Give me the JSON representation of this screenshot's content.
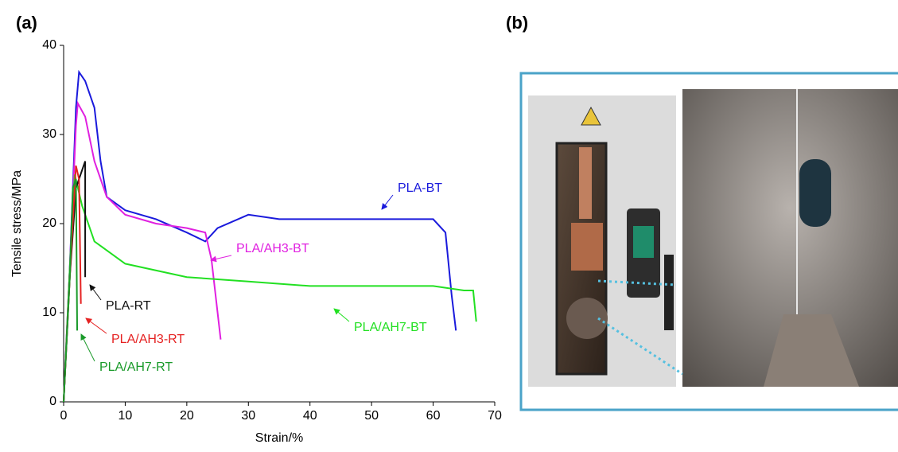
{
  "chart_data": {
    "type": "line",
    "panel_labels": [
      "(a)",
      "(b)"
    ],
    "x_label": "Strain/%",
    "y_label": "Tensile stress/MPa",
    "xlim": [
      0,
      70
    ],
    "xticks": [
      0,
      10,
      20,
      30,
      40,
      50,
      60,
      70
    ],
    "ylim": [
      0,
      40
    ],
    "yticks": [
      0,
      10,
      20,
      30,
      40
    ],
    "series": [
      {
        "name": "PLA-BT",
        "color": "#1a1adc",
        "x": [
          0,
          1,
          2,
          2.5,
          3.5,
          5,
          6,
          7,
          10,
          15,
          20,
          23,
          25,
          30,
          35,
          40,
          45,
          50,
          55,
          60,
          62,
          63,
          63.7
        ],
        "values": [
          0,
          15,
          33,
          37,
          36,
          33,
          27,
          23,
          21.5,
          20.5,
          19,
          18,
          19.5,
          21,
          20.5,
          20.5,
          20.5,
          20.5,
          20.5,
          20.5,
          19,
          12,
          8
        ]
      },
      {
        "name": "PLA/AH3-BT",
        "color": "#e020e0",
        "x": [
          0,
          1,
          2,
          2.3,
          3.5,
          5,
          7,
          10,
          15,
          20,
          23,
          24,
          25,
          25.5
        ],
        "values": [
          0,
          15,
          31,
          33.5,
          32,
          27,
          23,
          21,
          20,
          19.5,
          19,
          16,
          10,
          7
        ]
      },
      {
        "name": "PLA/AH7-BT",
        "color": "#22e022",
        "x": [
          0,
          1,
          1.8,
          3,
          5,
          10,
          20,
          30,
          40,
          50,
          60,
          65,
          66.5,
          67
        ],
        "values": [
          0,
          15,
          25.5,
          22,
          18,
          15.5,
          14,
          13.5,
          13,
          13,
          13,
          12.5,
          12.5,
          9
        ]
      },
      {
        "name": "PLA-RT",
        "color": "#111111",
        "x": [
          0,
          1,
          2,
          3.5,
          3.5
        ],
        "values": [
          0,
          14,
          24,
          27,
          14
        ]
      },
      {
        "name": "PLA/AH3-RT",
        "color": "#e52222",
        "x": [
          0,
          1,
          2,
          2.5,
          2.8
        ],
        "values": [
          0,
          14,
          26.5,
          25,
          11
        ]
      },
      {
        "name": "PLA/AH7-RT",
        "color": "#1a9a2a",
        "x": [
          0,
          1,
          1.5,
          2,
          2.2
        ],
        "values": [
          0,
          14,
          24,
          25,
          8
        ]
      }
    ]
  }
}
